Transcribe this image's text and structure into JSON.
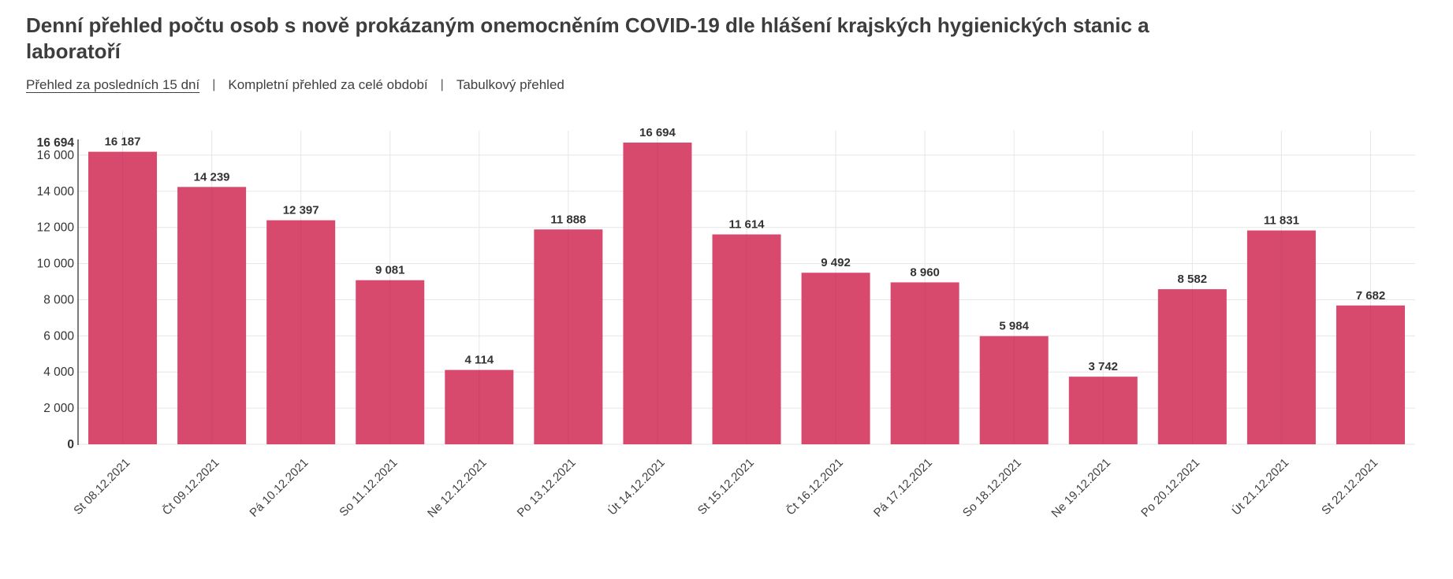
{
  "page": {
    "title": "Denní přehled počtu osob s nově prokázaným onemocněním COVID-19 dle hlášení krajských hygienických stanic a laboratoří"
  },
  "nav": {
    "separator": "|",
    "items": [
      {
        "label": "Přehled za posledních 15 dní",
        "active": true
      },
      {
        "label": "Kompletní přehled za celé období",
        "active": false
      },
      {
        "label": "Tabulkový přehled",
        "active": false
      }
    ]
  },
  "chart_data": {
    "type": "bar",
    "title": "Denní přehled počtu osob s nově prokázaným onemocněním COVID-19 dle hlášení krajských hygienických stanic a laboratoří",
    "categories": [
      "St 08.12.2021",
      "Čt 09.12.2021",
      "Pá 10.12.2021",
      "So 11.12.2021",
      "Ne 12.12.2021",
      "Po 13.12.2021",
      "Út 14.12.2021",
      "St 15.12.2021",
      "Čt 16.12.2021",
      "Pá 17.12.2021",
      "So 18.12.2021",
      "Ne 19.12.2021",
      "Po 20.12.2021",
      "Út 21.12.2021",
      "St 22.12.2021"
    ],
    "values": [
      16187,
      14239,
      12397,
      9081,
      4114,
      11888,
      16694,
      11614,
      9492,
      8960,
      5984,
      3742,
      8582,
      11831,
      7682
    ],
    "xlabel": "",
    "ylabel": "",
    "ylim": [
      0,
      16694
    ],
    "y_tick_interval": 2000,
    "y_tick_labels": [
      "0",
      "2 000",
      "4 000",
      "6 000",
      "8 000",
      "10 000",
      "12 000",
      "14 000",
      "16 000"
    ],
    "y_max_label": "16 694",
    "bold_axis_labels": [
      "0",
      "16 694"
    ],
    "data_labels": true,
    "number_format": "space-thousands",
    "x_label_rotation": -45,
    "grid": true,
    "legend": "none"
  },
  "colors": {
    "bar": "#d8496e",
    "grid": "#e6e6e6",
    "axis": "#333333",
    "text": "#404040",
    "value_label": "#333333",
    "title": "#3d3d3d",
    "blue_fragment": "#1f1fff"
  }
}
